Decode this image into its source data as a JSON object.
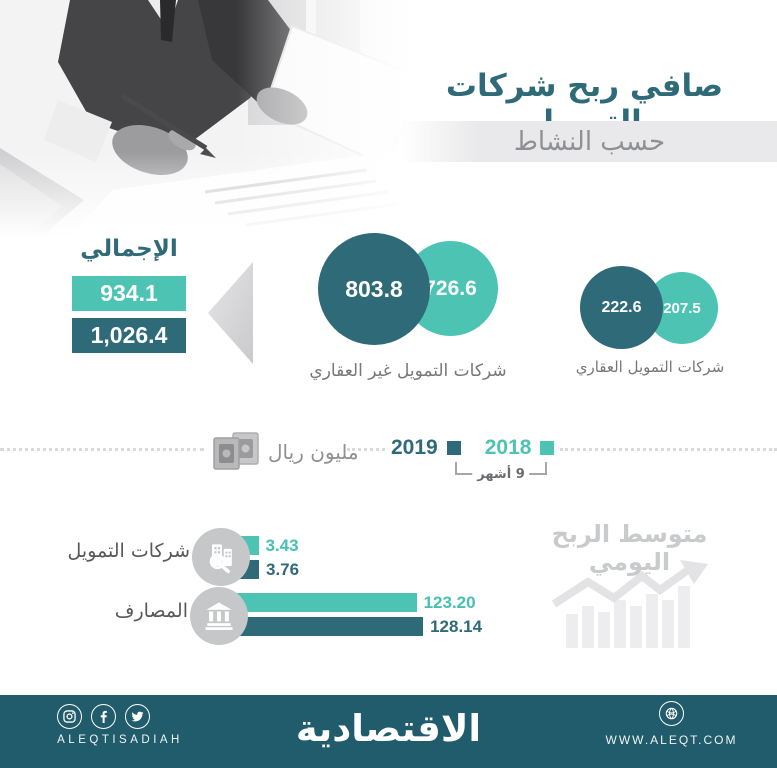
{
  "header": {
    "title": "صافي ربح شركات التمويل",
    "subtitle": "حسب النشاط"
  },
  "totals": {
    "label": "الإجمالي",
    "value_2018": "934.1",
    "value_2019": "1,026.4"
  },
  "bubbles": [
    {
      "label": "شركات التمويل غير العقاري",
      "value_2019": "803.8",
      "value_2018": "726.6"
    },
    {
      "label": "شركات التمويل العقاري",
      "value_2019": "222.6",
      "value_2018": "207.5"
    }
  ],
  "legend": {
    "unit_label": "مليون ريال",
    "year_2019": "2019",
    "year_2018": "2018",
    "period_note": "9 أشهر"
  },
  "daily_profit": {
    "title": "متوسط الربح اليومي",
    "rows": [
      {
        "label": "شركات التمويل",
        "icon": "buildings-search-icon",
        "value_2018": "3.43",
        "value_2019": "3.76"
      },
      {
        "label": "المصارف",
        "icon": "bank-icon",
        "value_2018": "123.20",
        "value_2019": "128.14"
      }
    ]
  },
  "footer": {
    "social_handle": "ALEQTISADIAH",
    "logo_text": "الاقتصادية",
    "website": "WWW.ALEQT.COM",
    "icons": [
      "instagram-icon",
      "facebook-icon",
      "twitter-icon",
      "globe-icon"
    ]
  },
  "colors": {
    "teal_dark": "#2e6a78",
    "teal_light": "#4cc3b3",
    "footer_bg": "#215c6c",
    "band_bg": "#e9e9eb",
    "gray_text": "#8f9093"
  },
  "chart_data": [
    {
      "type": "bubble",
      "title": "صافي ربح شركات التمويل حسب النشاط",
      "unit": "مليون ريال",
      "period_note": "9 أشهر",
      "categories": [
        "شركات التمويل غير العقاري",
        "شركات التمويل العقاري"
      ],
      "series": [
        {
          "name": "2019",
          "values": [
            803.8,
            222.6
          ],
          "color": "#2e6a78"
        },
        {
          "name": "2018",
          "values": [
            726.6,
            207.5
          ],
          "color": "#4cc3b3"
        }
      ],
      "totals": {
        "2019": 1026.4,
        "2018": 934.1
      },
      "legend_position": "top"
    },
    {
      "type": "bar",
      "orientation": "horizontal",
      "title": "متوسط الربح اليومي",
      "categories": [
        "شركات التمويل",
        "المصارف"
      ],
      "series": [
        {
          "name": "2018",
          "values": [
            3.43,
            123.2
          ],
          "color": "#4cc3b3"
        },
        {
          "name": "2019",
          "values": [
            3.76,
            128.14
          ],
          "color": "#2e6a78"
        }
      ]
    }
  ]
}
